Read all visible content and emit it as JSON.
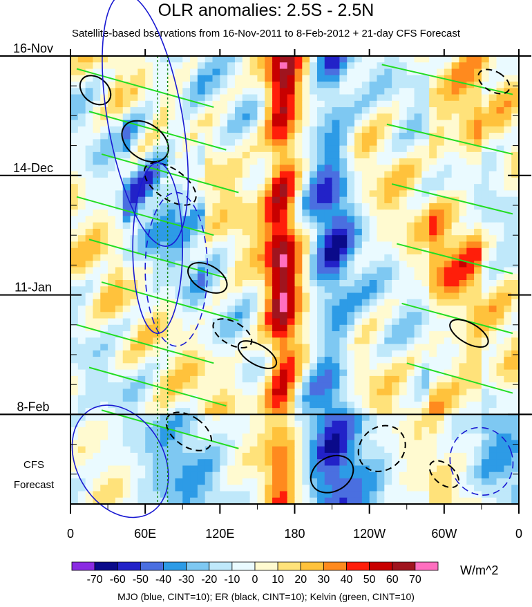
{
  "title": "OLR anomalies: 2.5S - 2.5N",
  "subtitle": "Satellite-based bservations from 16-Nov-2011 to 8-Feb-2012 + 21-day CFS Forecast",
  "forecast_label": [
    "CFS",
    "Forecast"
  ],
  "units": "W/m^2",
  "footnote": "MJO (blue, CINT=10); ER (black, CINT=10); Kelvin (green, CINT=10)",
  "chart_data": {
    "type": "heatmap",
    "title": "OLR anomalies: 2.5S - 2.5N",
    "xlabel": "",
    "ylabel": "",
    "x_ticks": [
      "0",
      "60E",
      "120E",
      "180",
      "120W",
      "60W",
      "0"
    ],
    "x_tick_lon": [
      0,
      60,
      120,
      180,
      240,
      300,
      360
    ],
    "xlim": [
      0,
      360
    ],
    "y_ticks": [
      "16-Nov",
      "14-Dec",
      "11-Jan",
      "8-Feb"
    ],
    "y_tick_day": [
      0,
      28,
      56,
      84
    ],
    "ylim": [
      0,
      105
    ],
    "forecast_start_day": 84,
    "colorbar": {
      "ticks": [
        "-70",
        "-60",
        "-50",
        "-40",
        "-30",
        "-20",
        "-10",
        "0",
        "10",
        "20",
        "30",
        "40",
        "50",
        "60",
        "70"
      ],
      "colors": [
        "#8a2be2",
        "#0a0a8a",
        "#2222c8",
        "#4a6fe0",
        "#2d9be6",
        "#7ec8f2",
        "#bfe8fa",
        "#eafaff",
        "#fffad0",
        "#ffe27a",
        "#ffc23c",
        "#ff8a1e",
        "#ff1e0a",
        "#c80000",
        "#a0141e",
        "#ff6fbf"
      ]
    },
    "warm_band_lon": 170,
    "dry_band_lon": 210,
    "contours": {
      "mjo_color": "#1a1ad2",
      "er_color": "#000000",
      "kelvin_color": "#22dd22"
    },
    "vertical_lines_lon": [
      70,
      78
    ],
    "grid": false
  }
}
